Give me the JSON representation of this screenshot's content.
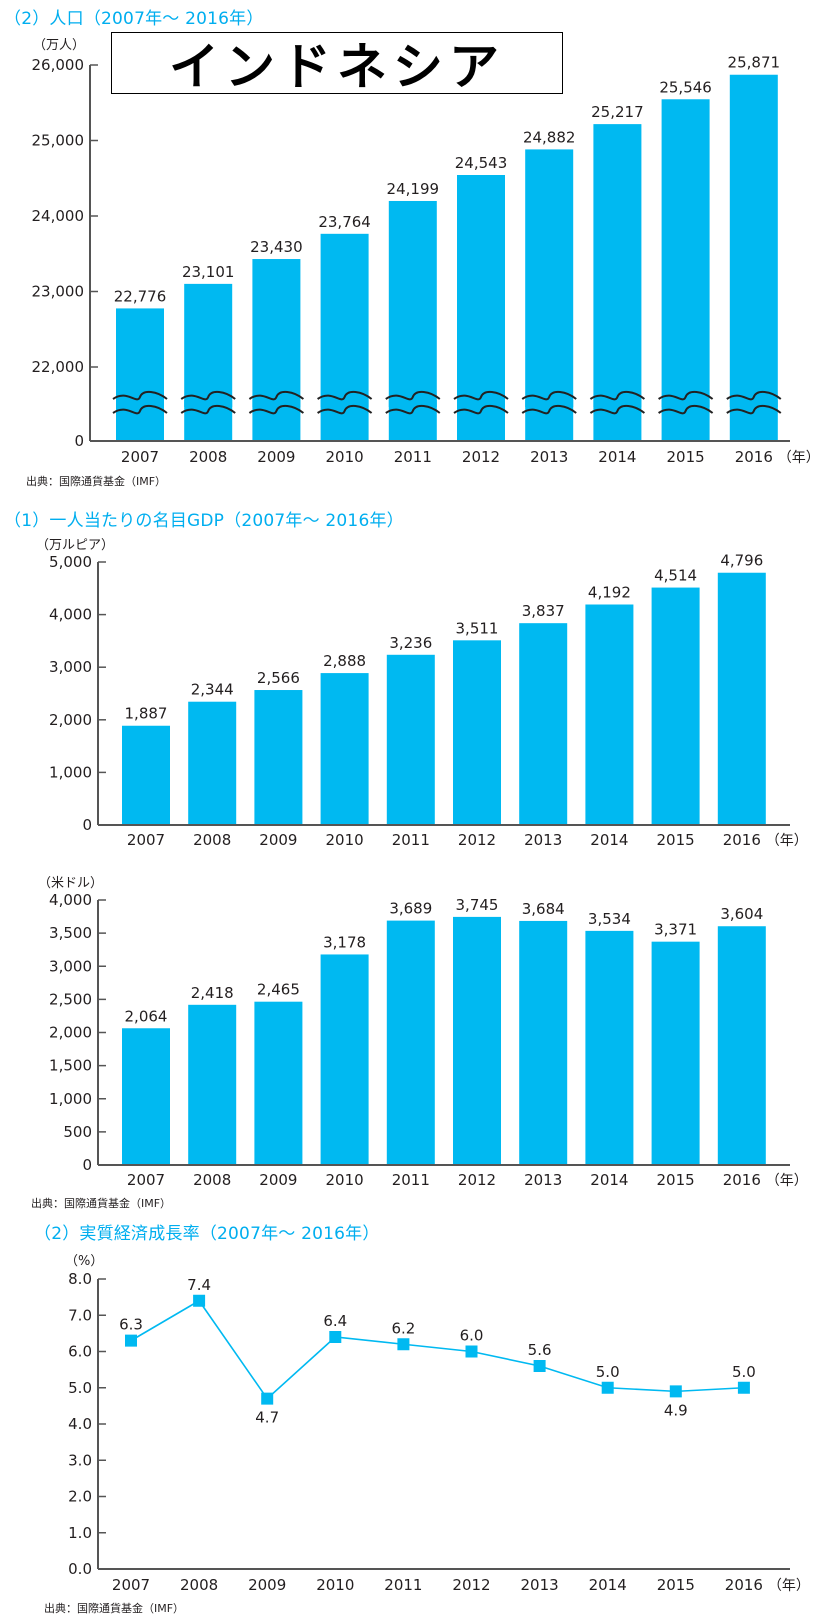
{
  "country_label": "インドネシア",
  "colors": {
    "accent": "#00aeef",
    "bar": "#00b9f1",
    "axis": "#555555",
    "text": "#231f20",
    "break_line": "#222222"
  },
  "chart_data": [
    {
      "id": "population",
      "type": "bar",
      "title": "（2）人口（2007年～ 2016年）",
      "ylabel": "（万人）",
      "xlabel_suffix": "（年）",
      "categories": [
        "2007",
        "2008",
        "2009",
        "2010",
        "2011",
        "2012",
        "2013",
        "2014",
        "2015",
        "2016"
      ],
      "values": [
        22776,
        23101,
        23430,
        23764,
        24199,
        24543,
        24882,
        25217,
        25546,
        25871
      ],
      "value_labels": [
        "22,776",
        "23,101",
        "23,430",
        "23,764",
        "24,199",
        "24,543",
        "24,882",
        "25,217",
        "25,546",
        "25,871"
      ],
      "yticks": [
        0,
        22000,
        23000,
        24000,
        25000,
        26000
      ],
      "ytick_labels": [
        "0",
        "22,000",
        "23,000",
        "24,000",
        "25,000",
        "26,000"
      ],
      "ylim": [
        0,
        26000
      ],
      "axis_break": true,
      "grid": false,
      "source": "出典：国際通貨基金（IMF）"
    },
    {
      "id": "gdp-rupiah",
      "type": "bar",
      "title": "（1）一人当たりの名目GDP（2007年～ 2016年）",
      "ylabel": "（万ルピア）",
      "xlabel_suffix": "（年）",
      "categories": [
        "2007",
        "2008",
        "2009",
        "2010",
        "2011",
        "2012",
        "2013",
        "2014",
        "2015",
        "2016"
      ],
      "values": [
        1887,
        2344,
        2566,
        2888,
        3236,
        3511,
        3837,
        4192,
        4514,
        4796
      ],
      "value_labels": [
        "1,887",
        "2,344",
        "2,566",
        "2,888",
        "3,236",
        "3,511",
        "3,837",
        "4,192",
        "4,514",
        "4,796"
      ],
      "yticks": [
        0,
        1000,
        2000,
        3000,
        4000,
        5000
      ],
      "ytick_labels": [
        "0",
        "1,000",
        "2,000",
        "3,000",
        "4,000",
        "5,000"
      ],
      "ylim": [
        0,
        5000
      ],
      "grid": false
    },
    {
      "id": "gdp-usd",
      "type": "bar",
      "title": "",
      "ylabel": "（米ドル）",
      "xlabel_suffix": "（年）",
      "categories": [
        "2007",
        "2008",
        "2009",
        "2010",
        "2011",
        "2012",
        "2013",
        "2014",
        "2015",
        "2016"
      ],
      "values": [
        2064,
        2418,
        2465,
        3178,
        3689,
        3745,
        3684,
        3534,
        3371,
        3604
      ],
      "value_labels": [
        "2,064",
        "2,418",
        "2,465",
        "3,178",
        "3,689",
        "3,745",
        "3,684",
        "3,534",
        "3,371",
        "3,604"
      ],
      "yticks": [
        0,
        500,
        1000,
        1500,
        2000,
        2500,
        3000,
        3500,
        4000
      ],
      "ytick_labels": [
        "0",
        "500",
        "1,000",
        "1,500",
        "2,000",
        "2,500",
        "3,000",
        "3,500",
        "4,000"
      ],
      "ylim": [
        0,
        4000
      ],
      "grid": false,
      "source": "出典：国際通貨基金（IMF）"
    },
    {
      "id": "growth",
      "type": "line",
      "title": "（2）実質経済成長率（2007年～ 2016年）",
      "ylabel": "（%）",
      "xlabel_suffix": "（年）",
      "categories": [
        "2007",
        "2008",
        "2009",
        "2010",
        "2011",
        "2012",
        "2013",
        "2014",
        "2015",
        "2016"
      ],
      "values": [
        6.3,
        7.4,
        4.7,
        6.4,
        6.2,
        6.0,
        5.6,
        5.0,
        4.9,
        5.0
      ],
      "value_labels": [
        "6.3",
        "7.4",
        "4.7",
        "6.4",
        "6.2",
        "6.0",
        "5.6",
        "5.0",
        "4.9",
        "5.0"
      ],
      "yticks": [
        0,
        1,
        2,
        3,
        4,
        5,
        6,
        7,
        8
      ],
      "ytick_labels": [
        "0.0",
        "1.0",
        "2.0",
        "3.0",
        "4.0",
        "5.0",
        "6.0",
        "7.0",
        "8.0"
      ],
      "ylim": [
        0,
        8
      ],
      "marker": "square",
      "grid": false,
      "source": "出典：国際通貨基金（IMF）"
    }
  ]
}
